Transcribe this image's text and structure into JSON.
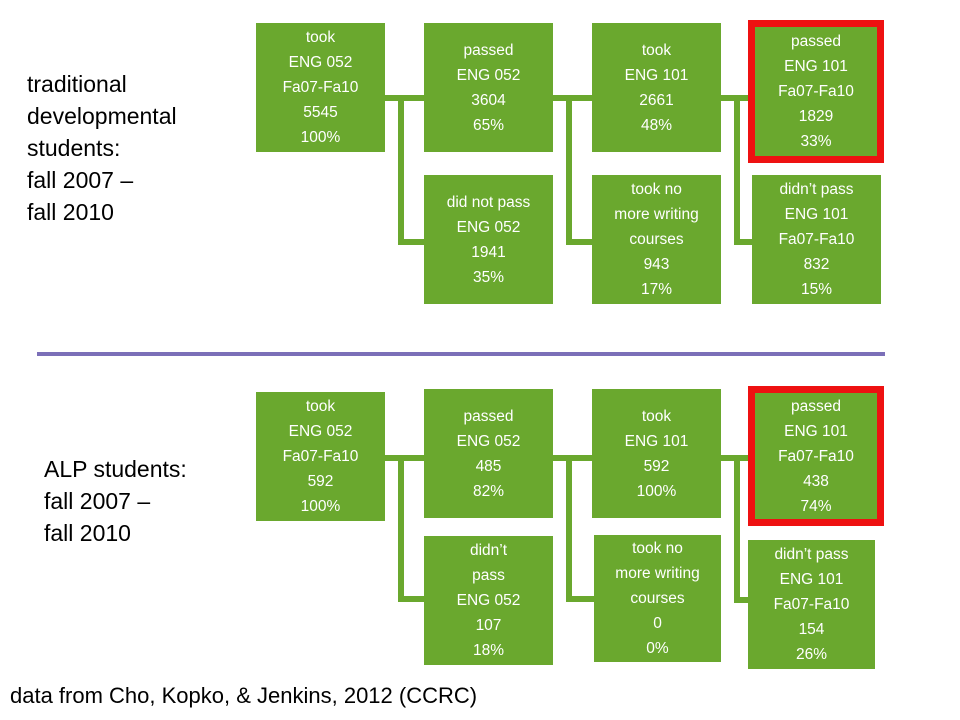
{
  "top": {
    "label": "traditional\ndevelopmental\nstudents:\nfall 2007 –\nfall 2010",
    "boxes": [
      {
        "lines": [
          "took",
          "ENG 052",
          "Fa07-Fa10",
          "5545",
          "100%"
        ]
      },
      {
        "lines": [
          "passed",
          "ENG 052",
          "3604",
          "65%"
        ]
      },
      {
        "lines": [
          "did not pass",
          "ENG 052",
          "1941",
          "35%"
        ]
      },
      {
        "lines": [
          "took",
          "ENG 101",
          "2661",
          "48%"
        ]
      },
      {
        "lines": [
          "took no",
          "more writing",
          "courses",
          "943",
          "17%"
        ]
      },
      {
        "lines": [
          "passed",
          "ENG 101",
          "Fa07-Fa10",
          "1829",
          "33%"
        ]
      },
      {
        "lines": [
          "didn’t pass",
          "ENG 101",
          "Fa07-Fa10",
          "832",
          "15%"
        ]
      }
    ]
  },
  "bottom": {
    "label": "ALP students:\n fall 2007 –\nfall 2010",
    "boxes": [
      {
        "lines": [
          "took",
          "ENG 052",
          "Fa07-Fa10",
          "592",
          "100%"
        ]
      },
      {
        "lines": [
          "passed",
          "ENG 052",
          "485",
          "82%"
        ]
      },
      {
        "lines": [
          "didn’t",
          "pass",
          "ENG 052",
          "107",
          "18%"
        ]
      },
      {
        "lines": [
          "took",
          "ENG 101",
          "592",
          "100%"
        ]
      },
      {
        "lines": [
          "took no",
          "more writing",
          "courses",
          "0",
          "0%"
        ]
      },
      {
        "lines": [
          "passed",
          "ENG 101",
          "Fa07-Fa10",
          "438",
          "74%"
        ]
      },
      {
        "lines": [
          "didn’t pass",
          "ENG 101",
          "Fa07-Fa10",
          "154",
          "26%"
        ]
      }
    ]
  },
  "source": "data from Cho, Kopko, & Jenkins, 2012 (CCRC)",
  "colors": {
    "box": "#6aa82e",
    "highlight": "#ee1111",
    "divider": "#7b6fb8"
  }
}
